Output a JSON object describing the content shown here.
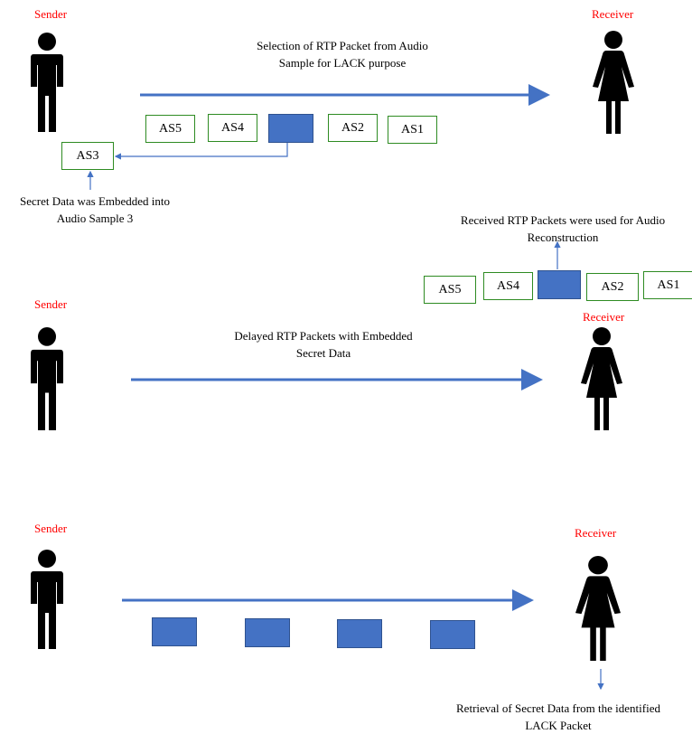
{
  "colors": {
    "arrow": "#4472c4",
    "box_border": "#2e8b22",
    "role_label": "#ff0000",
    "packet_fill": "#4472c4"
  },
  "scene1": {
    "sender_label": "Sender",
    "receiver_label": "Receiver",
    "caption_line1": "Selection of RTP Packet from Audio",
    "caption_line2": "Sample for LACK purpose",
    "samples": [
      "AS5",
      "AS4",
      "AS2",
      "AS1"
    ],
    "selected_sample": "AS3",
    "note_line1": "Secret Data was Embedded into",
    "note_line2": "Audio Sample 3"
  },
  "scene2": {
    "sender_label": "Sender",
    "receiver_label": "Receiver",
    "caption_line1": "Delayed RTP Packets with Embedded",
    "caption_line2": "Secret Data",
    "note_line1": "Received RTP Packets were used for Audio",
    "note_line2": "Reconstruction",
    "samples": [
      "AS5",
      "AS4",
      "AS2",
      "AS1"
    ]
  },
  "scene3": {
    "sender_label": "Sender",
    "receiver_label": "Receiver",
    "note_line1": "Retrieval of Secret Data from the identified",
    "note_line2": "LACK Packet"
  }
}
